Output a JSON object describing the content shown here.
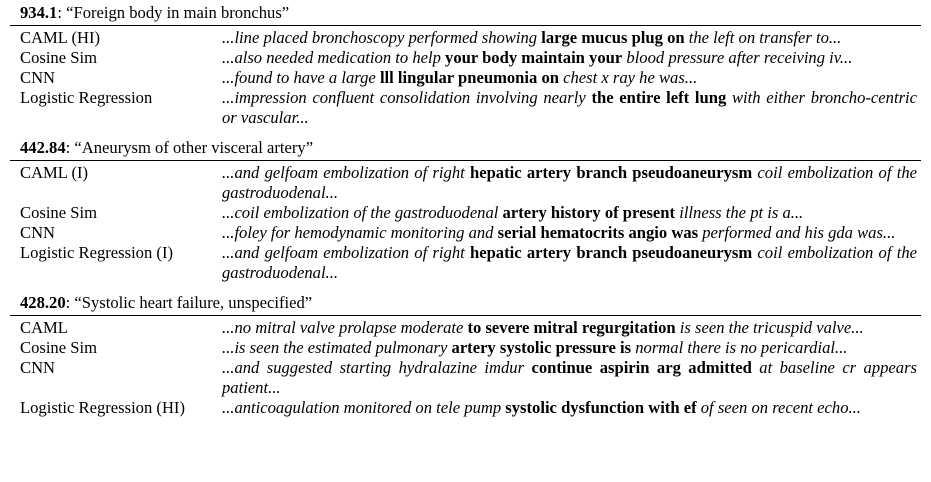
{
  "groups": [
    {
      "code": "934.1",
      "description": ": “Foreign body in main bronchus”",
      "rows": [
        {
          "model": "CAML (HI)",
          "pre": "...line placed bronchoscopy performed showing ",
          "hl": "large mucus plug on",
          "post": " the left on transfer to..."
        },
        {
          "model": "Cosine Sim",
          "pre": "...also needed medication to help ",
          "hl": "your body maintain your",
          "post": " blood pressure after receiving iv..."
        },
        {
          "model": "CNN",
          "pre": "...found to have a large ",
          "hl": "lll lingular pneumonia on",
          "post": " chest x ray he was..."
        },
        {
          "model": "Logistic Regression",
          "pre": "...impression confluent consolidation involving nearly ",
          "hl": "the entire left lung",
          "post": " with either broncho-centric or vascular..."
        }
      ]
    },
    {
      "code": "442.84",
      "description": ": “Aneurysm of other visceral artery”",
      "rows": [
        {
          "model": "CAML (I)",
          "pre": "...and gelfoam embolization of right ",
          "hl": "hepatic artery branch pseudoaneurysm",
          "post": " coil embolization of the gastroduodenal..."
        },
        {
          "model": "Cosine Sim",
          "pre": "...coil embolization of the gastroduodenal ",
          "hl": "artery history of present",
          "post": " illness the pt is a..."
        },
        {
          "model": "CNN",
          "pre": "...foley for hemodynamic monitoring and ",
          "hl": "serial hematocrits angio was",
          "post": " performed and his gda was..."
        },
        {
          "model": "Logistic Regression (I)",
          "pre": "...and gelfoam embolization of right ",
          "hl": "hepatic artery branch pseudoaneurysm",
          "post": " coil embolization of the gastroduodenal..."
        }
      ]
    },
    {
      "code": "428.20",
      "description": ": “Systolic heart failure, unspecified”",
      "rows": [
        {
          "model": "CAML",
          "pre": "...no mitral valve prolapse moderate ",
          "hl": "to severe mitral regurgitation",
          "post": " is seen the tricuspid valve..."
        },
        {
          "model": "Cosine Sim",
          "pre": "...is seen the estimated pulmonary ",
          "hl": "artery systolic pressure is",
          "post": " normal there is no pericardial..."
        },
        {
          "model": "CNN",
          "pre": "...and suggested starting hydralazine imdur ",
          "hl": "continue aspirin arg admitted",
          "post": " at baseline cr appears patient..."
        },
        {
          "model": "Logistic Regression (HI)",
          "pre": "...anticoagulation monitored on tele pump ",
          "hl": "systolic dysfunction with ef",
          "post": " of seen on recent echo..."
        }
      ]
    }
  ]
}
